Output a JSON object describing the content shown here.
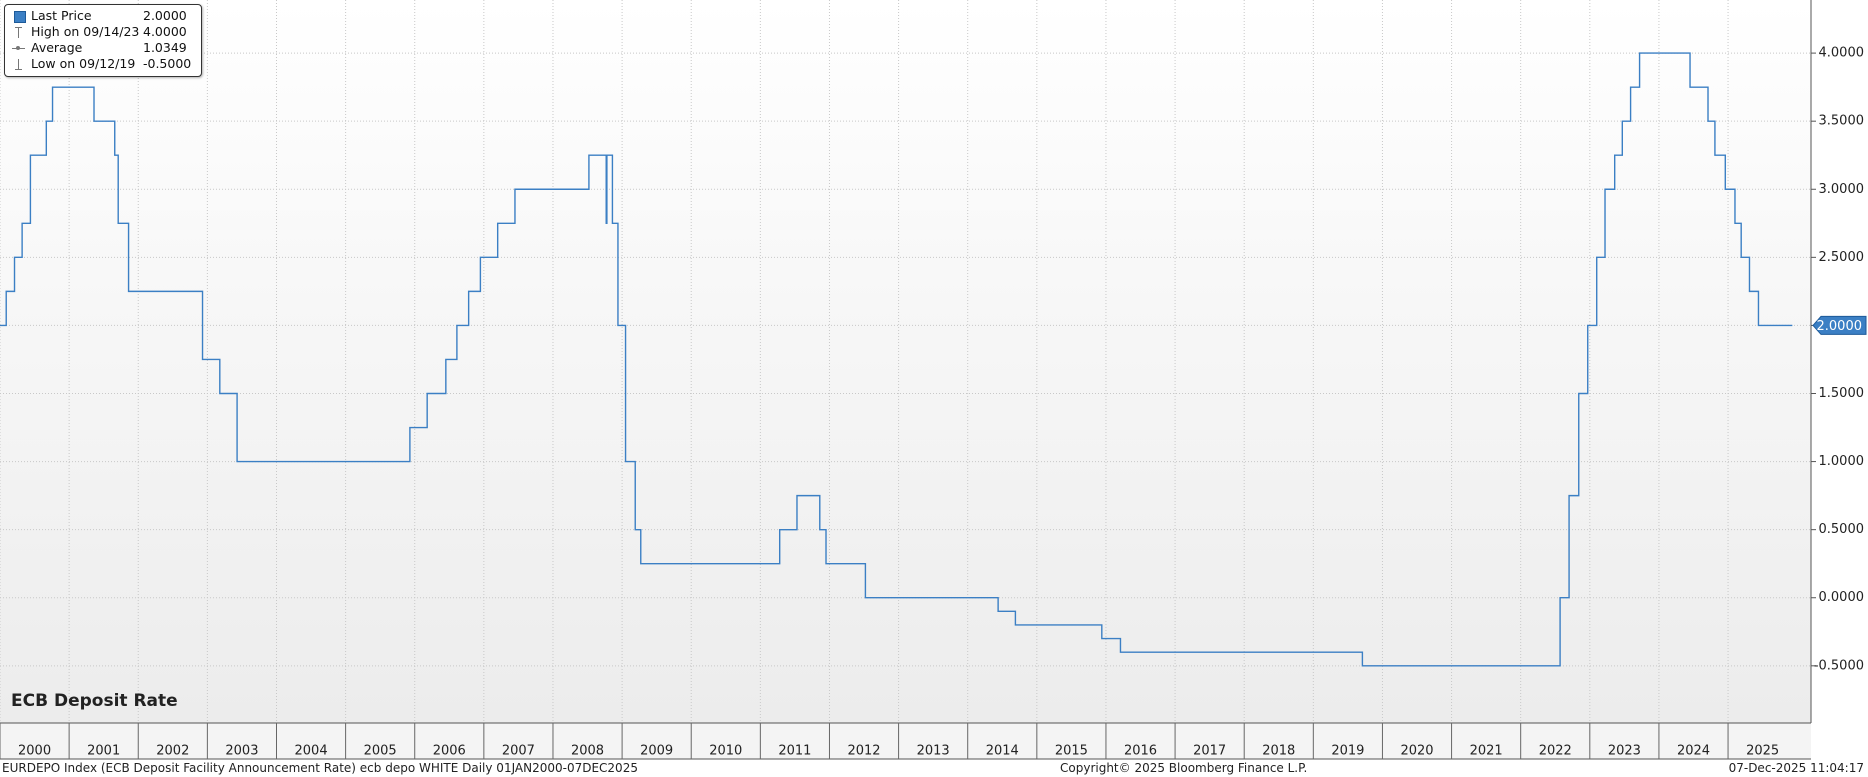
{
  "chart_data": {
    "type": "line",
    "title": "ECB Deposit Rate",
    "series": [
      {
        "name": "Last Price",
        "color": "#3b7fc4",
        "x": [
          2000.0,
          2000.09,
          2000.21,
          2000.32,
          2000.44,
          2000.67,
          2000.76,
          2001.36,
          2001.66,
          2001.71,
          2001.86,
          2002.93,
          2003.18,
          2003.43,
          2005.93,
          2006.18,
          2006.45,
          2006.61,
          2006.78,
          2006.95,
          2007.2,
          2007.45,
          2008.52,
          2008.77,
          2008.78,
          2008.86,
          2008.94,
          2009.05,
          2009.19,
          2009.27,
          2011.28,
          2011.53,
          2011.86,
          2011.95,
          2012.52,
          2014.44,
          2014.69,
          2015.94,
          2016.21,
          2019.71,
          2022.57,
          2022.7,
          2022.84,
          2022.97,
          2023.1,
          2023.22,
          2023.36,
          2023.47,
          2023.59,
          2023.72,
          2024.45,
          2024.71,
          2024.81,
          2024.96,
          2025.1,
          2025.19,
          2025.31,
          2025.44,
          2025.93
        ],
        "values": [
          2.0,
          2.25,
          2.5,
          2.75,
          3.25,
          3.5,
          3.75,
          3.5,
          3.25,
          2.75,
          2.25,
          1.75,
          1.5,
          1.0,
          1.25,
          1.5,
          1.75,
          2.0,
          2.25,
          2.5,
          2.75,
          3.0,
          3.25,
          2.75,
          3.25,
          2.75,
          2.0,
          1.0,
          0.5,
          0.25,
          0.5,
          0.75,
          0.5,
          0.25,
          0.0,
          -0.1,
          -0.2,
          -0.3,
          -0.4,
          -0.5,
          0.0,
          0.75,
          1.5,
          2.0,
          2.5,
          3.0,
          3.25,
          3.5,
          3.75,
          4.0,
          3.75,
          3.5,
          3.25,
          3.0,
          2.75,
          2.5,
          2.25,
          2.0,
          2.0
        ]
      }
    ],
    "last_price": {
      "value": 2.0,
      "label": "2.0000"
    },
    "legend": [
      {
        "name": "Last Price",
        "value": "2.0000"
      },
      {
        "name": "High on 09/14/23",
        "value": "4.0000"
      },
      {
        "name": "Average",
        "value": "1.0349"
      },
      {
        "name": "Low on 09/12/19",
        "value": "-0.5000"
      }
    ],
    "xlim": [
      2000,
      2026.2
    ],
    "xticks": [
      2000,
      2001,
      2002,
      2003,
      2004,
      2005,
      2006,
      2007,
      2008,
      2009,
      2010,
      2011,
      2012,
      2013,
      2014,
      2015,
      2016,
      2017,
      2018,
      2019,
      2020,
      2021,
      2022,
      2023,
      2024,
      2025
    ],
    "ylim": [
      -0.92,
      4.39
    ],
    "yticks": [
      {
        "value": -0.5,
        "label": "-0.5000"
      },
      {
        "value": 0,
        "label": "0.0000"
      },
      {
        "value": 0.5,
        "label": "0.5000"
      },
      {
        "value": 1,
        "label": "1.0000"
      },
      {
        "value": 1.5,
        "label": "1.5000"
      },
      {
        "value": 2,
        "label": "2.0000"
      },
      {
        "value": 2.5,
        "label": "2.5000"
      },
      {
        "value": 3,
        "label": "3.0000"
      },
      {
        "value": 3.5,
        "label": "3.5000"
      },
      {
        "value": 4,
        "label": "4.0000"
      }
    ],
    "grid": true
  },
  "footer": {
    "left": "EURDEPO Index (ECB Deposit Facility Announcement Rate) ecb depo WHITE Daily 01JAN2000-07DEC2025",
    "center": "Copyright© 2025 Bloomberg Finance L.P.",
    "right": "07-Dec-2025 11:04:17"
  }
}
